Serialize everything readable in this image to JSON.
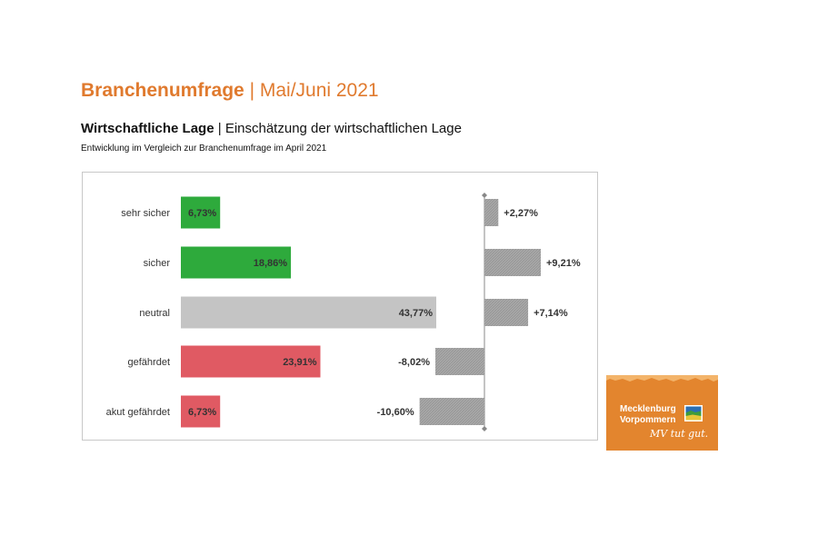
{
  "header": {
    "title_bold": "Branchenumfrage",
    "title_rest": "| Mai/Juni 2021",
    "subtitle_bold": "Wirtschaftliche Lage",
    "subtitle_rest": "| Einschätzung der wirtschaftlichen Lage",
    "note": "Entwicklung im Vergleich zur Branchenumfrage im April 2021"
  },
  "logo": {
    "line1": "Mecklenburg",
    "line2": "Vorpommern",
    "tagline": "MV tut gut."
  },
  "colors": {
    "green": "#2eaa3c",
    "gray": "#c4c4c4",
    "red": "#e05a63",
    "change": "#a8a8a8",
    "orange": "#e3852e"
  },
  "chart_data": {
    "type": "bar",
    "orientation": "horizontal",
    "categories": [
      "sehr sicher",
      "sicher",
      "neutral",
      "gefährdet",
      "akut gefährdet"
    ],
    "series": [
      {
        "values": [
          6.73,
          18.86,
          43.77,
          23.91,
          6.73
        ],
        "labels": [
          "6,73%",
          "18,86%",
          "43,77%",
          "23,91%",
          "6,73%"
        ],
        "colors": [
          "green",
          "green",
          "gray",
          "red",
          "red"
        ]
      },
      {
        "values": [
          2.27,
          9.21,
          7.14,
          -8.02,
          -10.6
        ],
        "labels": [
          "+2,27%",
          "+9,21%",
          "+7,14%",
          "-8,02%",
          "-10,60%"
        ],
        "color": "change"
      }
    ]
  }
}
